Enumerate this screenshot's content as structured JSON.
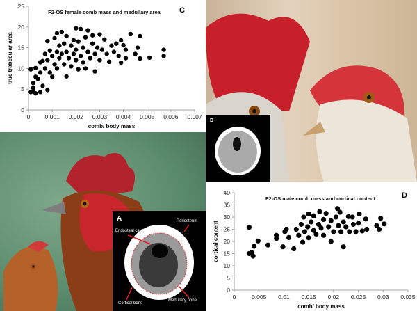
{
  "panels": {
    "A": {
      "label": "A",
      "annotations": [
        "Endosteal cavity",
        "Periosteum",
        "Cortical bone",
        "Medullary bone"
      ]
    },
    "B": {
      "label": "B"
    }
  },
  "chart_data": [
    {
      "type": "scatter",
      "panel_label": "C",
      "title": "F2-OS female comb mass and medullary area",
      "xlabel": "comb/ body mass",
      "ylabel": "true trabecular area",
      "xlim": [
        0,
        0.007
      ],
      "ylim": [
        0,
        25
      ],
      "xticks": [
        "0",
        "0.001",
        "0.002",
        "0.003",
        "0.004",
        "0.005",
        "0.006",
        "0.007"
      ],
      "yticks": [
        "0",
        "5",
        "10",
        "15",
        "20",
        "25"
      ],
      "points": [
        [
          0.0001,
          4.3
        ],
        [
          0.0002,
          5.3
        ],
        [
          0.0002,
          4.5
        ],
        [
          0.0003,
          4.0
        ],
        [
          0.0001,
          9.8
        ],
        [
          0.0003,
          10.1
        ],
        [
          0.0003,
          8.0
        ],
        [
          0.0002,
          6.5
        ],
        [
          0.0004,
          7.5
        ],
        [
          0.0005,
          4.3
        ],
        [
          0.0005,
          9
        ],
        [
          0.0005,
          11.5
        ],
        [
          0.0006,
          5.8
        ],
        [
          0.0006,
          11.8
        ],
        [
          0.0007,
          13.5
        ],
        [
          0.0007,
          10
        ],
        [
          0.0008,
          16.6
        ],
        [
          0.0008,
          12
        ],
        [
          0.0008,
          4.8
        ],
        [
          0.0009,
          9
        ],
        [
          0.0009,
          14.3
        ],
        [
          0.001,
          8
        ],
        [
          0.001,
          13
        ],
        [
          0.0011,
          17.3
        ],
        [
          0.0011,
          11
        ],
        [
          0.0012,
          18.5
        ],
        [
          0.0012,
          14
        ],
        [
          0.0012,
          10
        ],
        [
          0.0013,
          15.5
        ],
        [
          0.0013,
          12.5
        ],
        [
          0.0014,
          18.8
        ],
        [
          0.0014,
          13.5
        ],
        [
          0.0015,
          11
        ],
        [
          0.0015,
          16
        ],
        [
          0.0016,
          17.8
        ],
        [
          0.0016,
          8.1
        ],
        [
          0.0016,
          14
        ],
        [
          0.0017,
          12.5
        ],
        [
          0.0018,
          15.5
        ],
        [
          0.0018,
          10.5
        ],
        [
          0.0019,
          16.8
        ],
        [
          0.0019,
          13.5
        ],
        [
          0.002,
          19.7
        ],
        [
          0.002,
          14.5
        ],
        [
          0.002,
          12
        ],
        [
          0.0021,
          9.8
        ],
        [
          0.0021,
          16.5
        ],
        [
          0.0022,
          13
        ],
        [
          0.0022,
          19.5
        ],
        [
          0.0023,
          15
        ],
        [
          0.0023,
          11.5
        ],
        [
          0.0024,
          17.5
        ],
        [
          0.0024,
          10
        ],
        [
          0.0025,
          19.2
        ],
        [
          0.0025,
          14
        ],
        [
          0.0026,
          12.5
        ],
        [
          0.0027,
          16
        ],
        [
          0.0027,
          18
        ],
        [
          0.0028,
          9.3
        ],
        [
          0.0028,
          13.5
        ],
        [
          0.0029,
          15
        ],
        [
          0.003,
          18.2
        ],
        [
          0.003,
          12
        ],
        [
          0.0031,
          14.5
        ],
        [
          0.0032,
          17
        ],
        [
          0.0033,
          13.5
        ],
        [
          0.0034,
          11.6
        ],
        [
          0.0035,
          15.5
        ],
        [
          0.0036,
          14
        ],
        [
          0.0037,
          16
        ],
        [
          0.0038,
          13
        ],
        [
          0.0039,
          11.4
        ],
        [
          0.0039,
          16.8
        ],
        [
          0.004,
          15.6
        ],
        [
          0.0041,
          12.5
        ],
        [
          0.0041,
          14.5
        ],
        [
          0.0043,
          18.3
        ],
        [
          0.0045,
          13.5
        ],
        [
          0.0046,
          15
        ],
        [
          0.0047,
          17.8
        ],
        [
          0.0047,
          12.4
        ],
        [
          0.0051,
          12.6
        ],
        [
          0.0057,
          14.5
        ],
        [
          0.0057,
          13
        ]
      ]
    },
    {
      "type": "scatter",
      "panel_label": "D",
      "title": "F2-OS male comb mass and cortical content",
      "xlabel": "comb/ body mass",
      "ylabel": "cortical content",
      "xlim": [
        0,
        0.035
      ],
      "ylim": [
        0,
        40
      ],
      "xticks": [
        "0",
        "0.005",
        "0.01",
        "0.015",
        "0.02",
        "0.025",
        "0.03",
        "0.035"
      ],
      "yticks": [
        "0",
        "5",
        "10",
        "15",
        "20",
        "25",
        "30",
        "35",
        "40"
      ],
      "points": [
        [
          0.003,
          25.8
        ],
        [
          0.003,
          15
        ],
        [
          0.0035,
          15.5
        ],
        [
          0.0038,
          14
        ],
        [
          0.004,
          18
        ],
        [
          0.0048,
          20.2
        ],
        [
          0.0068,
          18.5
        ],
        [
          0.0085,
          22.5
        ],
        [
          0.0085,
          21.2
        ],
        [
          0.0098,
          17.8
        ],
        [
          0.0102,
          24
        ],
        [
          0.0105,
          25
        ],
        [
          0.011,
          21.6
        ],
        [
          0.012,
          17
        ],
        [
          0.0125,
          25
        ],
        [
          0.013,
          22.5
        ],
        [
          0.0135,
          27
        ],
        [
          0.0138,
          19.7
        ],
        [
          0.014,
          30
        ],
        [
          0.0142,
          24
        ],
        [
          0.0148,
          26
        ],
        [
          0.015,
          31.3
        ],
        [
          0.015,
          21.5
        ],
        [
          0.0155,
          28
        ],
        [
          0.016,
          24.5
        ],
        [
          0.016,
          30.5
        ],
        [
          0.0165,
          23
        ],
        [
          0.017,
          27
        ],
        [
          0.0172,
          32.2
        ],
        [
          0.0175,
          25.5
        ],
        [
          0.018,
          29
        ],
        [
          0.018,
          22.5
        ],
        [
          0.0185,
          31.5
        ],
        [
          0.019,
          26
        ],
        [
          0.0195,
          20
        ],
        [
          0.0195,
          28.5
        ],
        [
          0.02,
          24
        ],
        [
          0.0205,
          30
        ],
        [
          0.0208,
          33.5
        ],
        [
          0.021,
          26.5
        ],
        [
          0.0213,
          32
        ],
        [
          0.0215,
          24
        ],
        [
          0.022,
          28
        ],
        [
          0.022,
          17.8
        ],
        [
          0.0225,
          26
        ],
        [
          0.023,
          30.2
        ],
        [
          0.0232,
          24
        ],
        [
          0.0238,
          30
        ],
        [
          0.024,
          27
        ],
        [
          0.0245,
          24
        ],
        [
          0.025,
          27.5
        ],
        [
          0.0252,
          31.3
        ],
        [
          0.0258,
          24.3
        ],
        [
          0.0265,
          29.2
        ],
        [
          0.0267,
          25
        ],
        [
          0.0287,
          26.5
        ],
        [
          0.0292,
          25
        ],
        [
          0.0295,
          29.5
        ],
        [
          0.0302,
          27.2
        ]
      ]
    }
  ]
}
